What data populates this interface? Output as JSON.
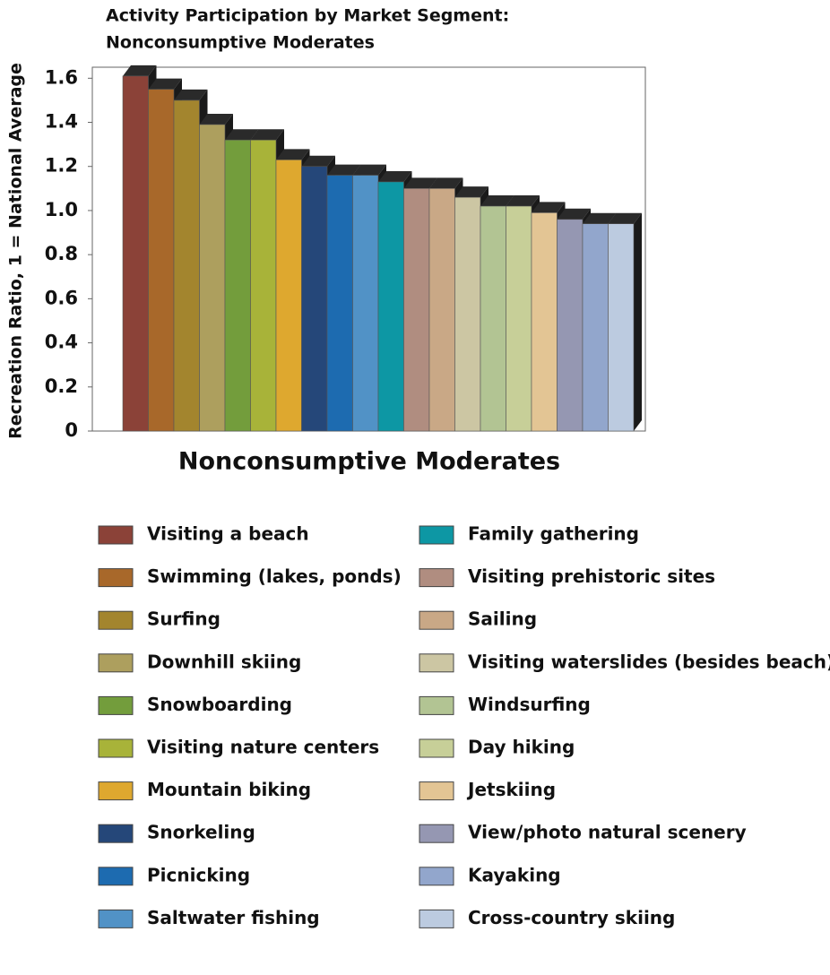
{
  "chart_data": {
    "type": "bar",
    "title": [
      "Activity Participation by Market Segment:",
      "Nonconsumptive Moderates"
    ],
    "y_label": "Recreation Ratio, 1 = National Average",
    "categories": [
      "Nonconsumptive Moderates"
    ],
    "ylim": [
      0,
      1.65
    ],
    "yticks": [
      0,
      0.2,
      0.4,
      0.6,
      0.8,
      {
        "value": 1,
        "label": "1.0"
      },
      1.2,
      1.4,
      1.6
    ],
    "series": [
      {
        "name": "Visiting a beach",
        "color": "#8b4238",
        "values": [
          1.61
        ]
      },
      {
        "name": "Swimming (lakes, ponds)",
        "color": "#a8682a",
        "values": [
          1.55
        ]
      },
      {
        "name": "Surfing",
        "color": "#a3852e",
        "values": [
          1.5
        ]
      },
      {
        "name": "Downhill skiing",
        "color": "#ad9f5e",
        "values": [
          1.39
        ]
      },
      {
        "name": "Snowboarding",
        "color": "#739d3c",
        "values": [
          1.32
        ]
      },
      {
        "name": "Visiting nature centers",
        "color": "#a8b339",
        "values": [
          1.32
        ]
      },
      {
        "name": "Mountain biking",
        "color": "#dea82f",
        "values": [
          1.23
        ]
      },
      {
        "name": "Snorkeling",
        "color": "#254779",
        "values": [
          1.2
        ]
      },
      {
        "name": "Picnicking",
        "color": "#1d6bb0",
        "values": [
          1.16
        ]
      },
      {
        "name": "Saltwater fishing",
        "color": "#5192c6",
        "values": [
          1.16
        ]
      },
      {
        "name": "Family gathering",
        "color": "#0d97a4",
        "values": [
          1.13
        ]
      },
      {
        "name": "Visiting prehistoric sites",
        "color": "#b08d80",
        "values": [
          1.1
        ]
      },
      {
        "name": "Sailing",
        "color": "#c9a886",
        "values": [
          1.1
        ]
      },
      {
        "name": "Visiting waterslides (besides beach)",
        "color": "#ccc6a3",
        "values": [
          1.06
        ]
      },
      {
        "name": "Windsurfing",
        "color": "#b2c493",
        "values": [
          1.02
        ]
      },
      {
        "name": "Day hiking",
        "color": "#c7cf98",
        "values": [
          1.02
        ]
      },
      {
        "name": "Jetskiing",
        "color": "#e3c594",
        "values": [
          0.99
        ]
      },
      {
        "name": "View/photo natural scenery",
        "color": "#9597b2",
        "values": [
          0.96
        ]
      },
      {
        "name": "Kayaking",
        "color": "#92a6cc",
        "values": [
          0.94
        ]
      },
      {
        "name": "Cross-country skiing",
        "color": "#bccbe0",
        "values": [
          0.94
        ]
      }
    ],
    "legend": "bottom"
  }
}
